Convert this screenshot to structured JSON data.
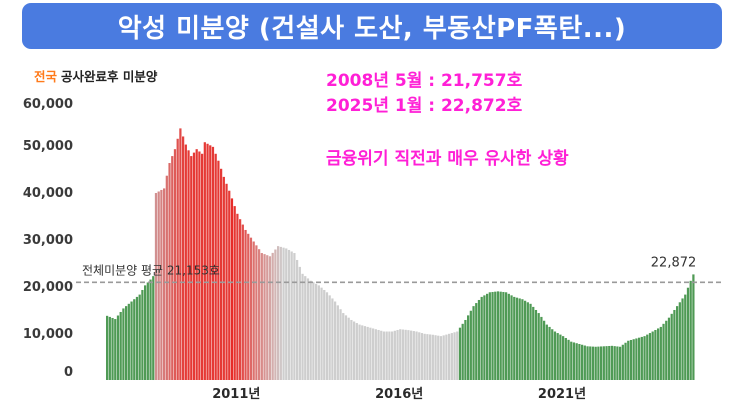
{
  "banner": {
    "title": "악성 미분양 (건설사 도산, 부동산PF폭탄...)"
  },
  "scope": {
    "region": "전국",
    "metric": "공사완료후 미분양"
  },
  "annotations": {
    "line1": "2008년 5월 : 21,757호",
    "line2": "2025년 1월 : 22,872호",
    "line3": "금융위기 직전과 매우 유사한 상황"
  },
  "colors": {
    "banner": "#4a7be0",
    "annotation": "#ff1fd6",
    "red": "#e53935",
    "green": "#4f9a55",
    "average_line": "#9a9a9a"
  },
  "chart_data": {
    "type": "bar",
    "start": "2007-01",
    "end": "2025-01",
    "ylim": [
      0,
      60000
    ],
    "yticks": [
      "60,000",
      "50,000",
      "40,000",
      "30,000",
      "20,000",
      "10,000",
      "0"
    ],
    "xticks": [
      {
        "label": "2011년",
        "date": "2011-01"
      },
      {
        "label": "2016년",
        "date": "2016-01"
      },
      {
        "label": "2021년",
        "date": "2021-01"
      }
    ],
    "average": {
      "label": "전체미분양 평균 21,153호",
      "value": 21153
    },
    "last_label": "22,872",
    "anchors": [
      [
        "2007-01",
        13900
      ],
      [
        "2007-04",
        13200
      ],
      [
        "2007-07",
        15500
      ],
      [
        "2007-10",
        17000
      ],
      [
        "2008-01",
        18500
      ],
      [
        "2008-03",
        20500
      ],
      [
        "2008-05",
        21757
      ],
      [
        "2008-06",
        22500
      ],
      [
        "2008-07",
        40500
      ],
      [
        "2008-10",
        41500
      ],
      [
        "2008-12",
        47000
      ],
      [
        "2009-02",
        50000
      ],
      [
        "2009-04",
        54500
      ],
      [
        "2009-06",
        51000
      ],
      [
        "2009-08",
        48500
      ],
      [
        "2009-10",
        50000
      ],
      [
        "2009-12",
        49000
      ],
      [
        "2010-01",
        51500
      ],
      [
        "2010-04",
        50500
      ],
      [
        "2010-06",
        47500
      ],
      [
        "2010-08",
        44000
      ],
      [
        "2010-10",
        41000
      ],
      [
        "2011-01",
        36000
      ],
      [
        "2011-04",
        32500
      ],
      [
        "2011-07",
        30000
      ],
      [
        "2011-10",
        27500
      ],
      [
        "2012-01",
        26800
      ],
      [
        "2012-04",
        29000
      ],
      [
        "2012-07",
        28500
      ],
      [
        "2012-10",
        27500
      ],
      [
        "2013-01",
        23000
      ],
      [
        "2013-04",
        21500
      ],
      [
        "2013-07",
        20500
      ],
      [
        "2013-10",
        19000
      ],
      [
        "2014-01",
        17000
      ],
      [
        "2014-04",
        14500
      ],
      [
        "2014-07",
        13000
      ],
      [
        "2014-10",
        12000
      ],
      [
        "2015-01",
        11500
      ],
      [
        "2015-04",
        11000
      ],
      [
        "2015-07",
        10500
      ],
      [
        "2015-10",
        10500
      ],
      [
        "2016-01",
        11000
      ],
      [
        "2016-04",
        10800
      ],
      [
        "2016-07",
        10500
      ],
      [
        "2016-10",
        10000
      ],
      [
        "2017-01",
        9800
      ],
      [
        "2017-04",
        9500
      ],
      [
        "2017-07",
        10000
      ],
      [
        "2017-10",
        10500
      ],
      [
        "2018-01",
        13000
      ],
      [
        "2018-04",
        16000
      ],
      [
        "2018-07",
        18000
      ],
      [
        "2018-10",
        19000
      ],
      [
        "2019-01",
        19200
      ],
      [
        "2019-04",
        19000
      ],
      [
        "2019-07",
        18000
      ],
      [
        "2019-10",
        17500
      ],
      [
        "2020-01",
        16500
      ],
      [
        "2020-04",
        14500
      ],
      [
        "2020-07",
        12000
      ],
      [
        "2020-10",
        10500
      ],
      [
        "2021-01",
        9500
      ],
      [
        "2021-04",
        8300
      ],
      [
        "2021-07",
        7800
      ],
      [
        "2021-10",
        7300
      ],
      [
        "2022-01",
        7200
      ],
      [
        "2022-04",
        7300
      ],
      [
        "2022-07",
        7400
      ],
      [
        "2022-10",
        7200
      ],
      [
        "2023-01",
        8500
      ],
      [
        "2023-04",
        9000
      ],
      [
        "2023-07",
        9500
      ],
      [
        "2023-10",
        10500
      ],
      [
        "2024-01",
        11500
      ],
      [
        "2024-04",
        13500
      ],
      [
        "2024-07",
        16000
      ],
      [
        "2024-10",
        18500
      ],
      [
        "2024-12",
        21480
      ],
      [
        "2025-01",
        22872
      ]
    ]
  }
}
